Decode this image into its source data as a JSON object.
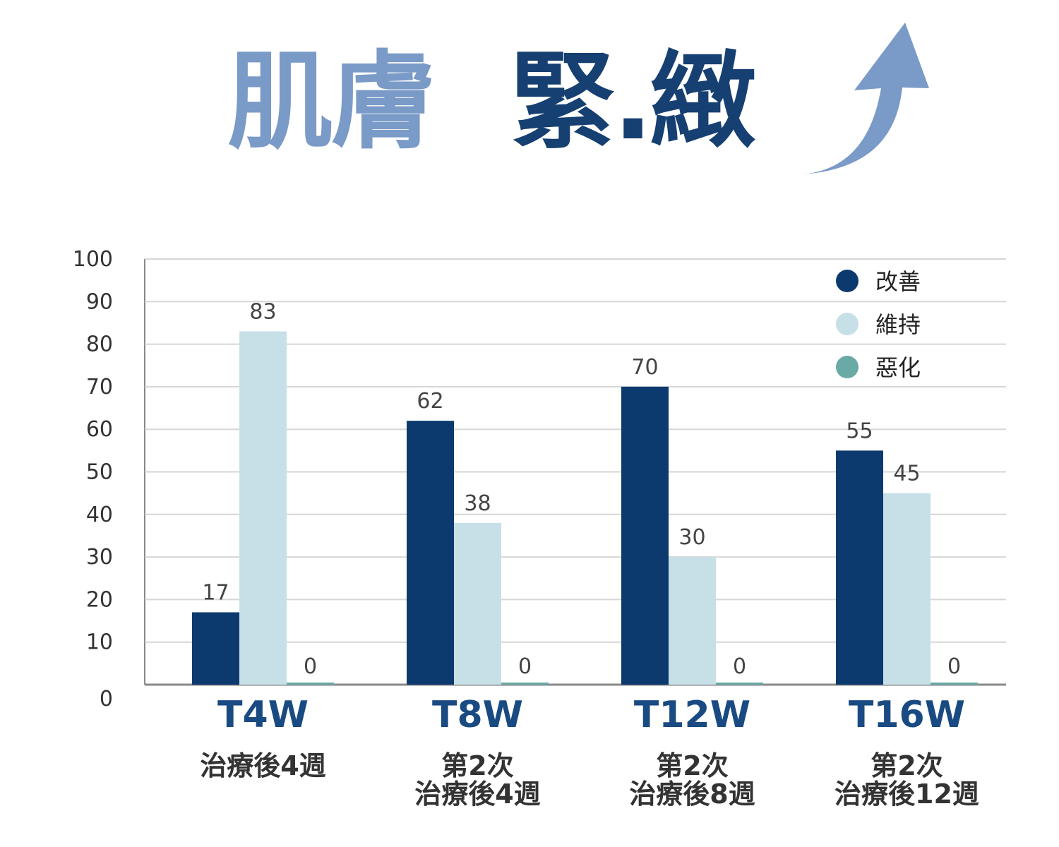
{
  "title": {
    "part1": "肌膚",
    "part2": "緊.緻"
  },
  "icons": {
    "arrow": "up-swoosh-arrow-icon"
  },
  "colors": {
    "improve": "#0d3a6e",
    "maintain": "#c7e0e8",
    "worsen": "#6aaaa6",
    "title_light": "#7a9ac7",
    "title_dark": "#163f72",
    "category": "#1a4a82"
  },
  "chart_data": {
    "type": "bar",
    "categories": [
      "T4W",
      "T8W",
      "T12W",
      "T16W"
    ],
    "subtitles": [
      [
        "治療後4週"
      ],
      [
        "第2次",
        "治療後4週"
      ],
      [
        "第2次",
        "治療後8週"
      ],
      [
        "第2次",
        "治療後12週"
      ]
    ],
    "series": [
      {
        "name": "改善",
        "values": [
          17,
          62,
          70,
          55
        ]
      },
      {
        "name": "維持",
        "values": [
          83,
          38,
          30,
          45
        ]
      },
      {
        "name": "惡化",
        "values": [
          0,
          0,
          0,
          0
        ]
      }
    ],
    "ylim": [
      0,
      100
    ],
    "yticks": [
      0,
      10,
      20,
      30,
      40,
      50,
      60,
      70,
      80,
      90,
      100
    ],
    "grid": true,
    "legend": "top-right"
  }
}
